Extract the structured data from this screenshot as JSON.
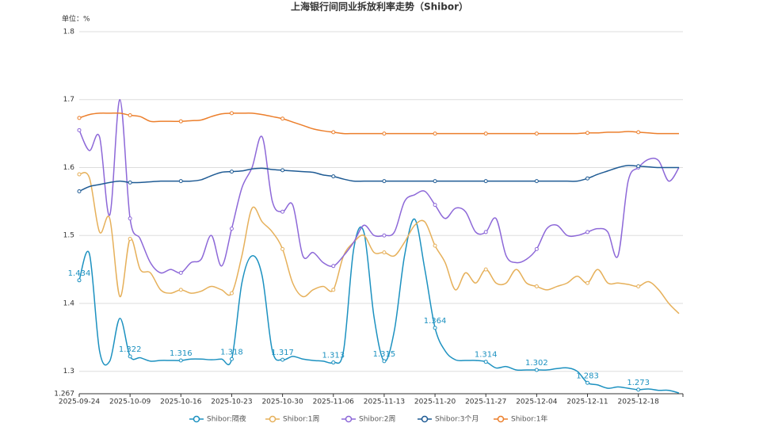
{
  "chart_data": {
    "type": "line",
    "title": "上海银行间同业拆放利率走势（Shibor）",
    "y_unit_label": "单位：%",
    "categories": [
      "2025-09-24",
      null,
      null,
      null,
      null,
      "2025-10-09",
      null,
      null,
      null,
      null,
      "2025-10-16",
      null,
      null,
      null,
      null,
      "2025-10-23",
      null,
      null,
      null,
      null,
      "2025-10-30",
      null,
      null,
      null,
      null,
      "2025-11-06",
      null,
      null,
      null,
      null,
      "2025-11-13",
      null,
      null,
      null,
      null,
      "2025-11-20",
      null,
      null,
      null,
      null,
      "2025-11-27",
      null,
      null,
      null,
      null,
      "2025-12-04",
      null,
      null,
      null,
      null,
      "2025-12-11",
      null,
      null,
      null,
      null,
      "2025-12-18",
      null,
      null,
      null,
      null
    ],
    "ylim": [
      1.267,
      1.8
    ],
    "yticks": [
      1.267,
      1.3,
      1.4,
      1.5,
      1.6,
      1.7,
      1.8
    ],
    "grid": true,
    "smooth": true,
    "data_label_series": 0,
    "series": [
      {
        "name": "Shibor:隔夜",
        "color": "#1c91c0",
        "values": [
          1.434,
          1.473,
          1.33,
          1.315,
          1.378,
          1.322,
          1.32,
          1.315,
          1.316,
          1.316,
          1.316,
          1.318,
          1.318,
          1.317,
          1.318,
          1.318,
          1.43,
          1.47,
          1.44,
          1.33,
          1.317,
          1.322,
          1.318,
          1.316,
          1.315,
          1.313,
          1.33,
          1.48,
          1.505,
          1.38,
          1.315,
          1.36,
          1.47,
          1.524,
          1.45,
          1.364,
          1.33,
          1.317,
          1.316,
          1.316,
          1.314,
          1.305,
          1.307,
          1.302,
          1.302,
          1.302,
          1.302,
          1.304,
          1.305,
          1.3,
          1.283,
          1.28,
          1.275,
          1.277,
          1.275,
          1.273,
          1.274,
          1.272,
          1.272,
          1.268
        ]
      },
      {
        "name": "Shibor:1周",
        "color": "#e6b05a",
        "values": [
          1.59,
          1.585,
          1.505,
          1.525,
          1.41,
          1.495,
          1.45,
          1.445,
          1.42,
          1.415,
          1.42,
          1.415,
          1.418,
          1.425,
          1.42,
          1.415,
          1.47,
          1.54,
          1.52,
          1.505,
          1.48,
          1.43,
          1.41,
          1.42,
          1.425,
          1.42,
          1.47,
          1.49,
          1.5,
          1.475,
          1.475,
          1.47,
          1.49,
          1.515,
          1.52,
          1.485,
          1.46,
          1.42,
          1.445,
          1.43,
          1.45,
          1.43,
          1.43,
          1.45,
          1.43,
          1.425,
          1.42,
          1.425,
          1.43,
          1.44,
          1.43,
          1.45,
          1.43,
          1.43,
          1.428,
          1.425,
          1.432,
          1.42,
          1.4,
          1.385
        ]
      },
      {
        "name": "Shibor:2周",
        "color": "#8d68d8",
        "values": [
          1.655,
          1.625,
          1.645,
          1.53,
          1.7,
          1.525,
          1.495,
          1.46,
          1.445,
          1.45,
          1.445,
          1.46,
          1.465,
          1.5,
          1.455,
          1.51,
          1.57,
          1.6,
          1.645,
          1.55,
          1.535,
          1.545,
          1.47,
          1.475,
          1.46,
          1.455,
          1.47,
          1.49,
          1.515,
          1.5,
          1.5,
          1.505,
          1.55,
          1.56,
          1.565,
          1.545,
          1.525,
          1.54,
          1.535,
          1.505,
          1.505,
          1.525,
          1.47,
          1.46,
          1.465,
          1.48,
          1.51,
          1.515,
          1.5,
          1.5,
          1.505,
          1.51,
          1.505,
          1.47,
          1.58,
          1.6,
          1.612,
          1.61,
          1.58,
          1.6
        ]
      },
      {
        "name": "Shibor:3个月",
        "color": "#1f5b94",
        "values": [
          1.565,
          1.572,
          1.575,
          1.578,
          1.58,
          1.578,
          1.578,
          1.579,
          1.58,
          1.58,
          1.58,
          1.58,
          1.582,
          1.588,
          1.593,
          1.594,
          1.595,
          1.598,
          1.599,
          1.597,
          1.596,
          1.595,
          1.594,
          1.593,
          1.589,
          1.587,
          1.583,
          1.58,
          1.58,
          1.58,
          1.58,
          1.58,
          1.58,
          1.58,
          1.58,
          1.58,
          1.58,
          1.58,
          1.58,
          1.58,
          1.58,
          1.58,
          1.58,
          1.58,
          1.58,
          1.58,
          1.58,
          1.58,
          1.58,
          1.58,
          1.584,
          1.59,
          1.595,
          1.6,
          1.603,
          1.602,
          1.601,
          1.6,
          1.6,
          1.6
        ]
      },
      {
        "name": "Shibor:1年",
        "color": "#ec7f2c",
        "values": [
          1.673,
          1.678,
          1.68,
          1.68,
          1.68,
          1.677,
          1.675,
          1.668,
          1.668,
          1.668,
          1.668,
          1.669,
          1.67,
          1.675,
          1.679,
          1.68,
          1.68,
          1.68,
          1.678,
          1.675,
          1.672,
          1.667,
          1.662,
          1.657,
          1.654,
          1.652,
          1.65,
          1.65,
          1.65,
          1.65,
          1.65,
          1.65,
          1.65,
          1.65,
          1.65,
          1.65,
          1.65,
          1.65,
          1.65,
          1.65,
          1.65,
          1.65,
          1.65,
          1.65,
          1.65,
          1.65,
          1.65,
          1.65,
          1.65,
          1.65,
          1.651,
          1.651,
          1.652,
          1.652,
          1.653,
          1.652,
          1.651,
          1.65,
          1.65,
          1.65
        ]
      }
    ]
  }
}
